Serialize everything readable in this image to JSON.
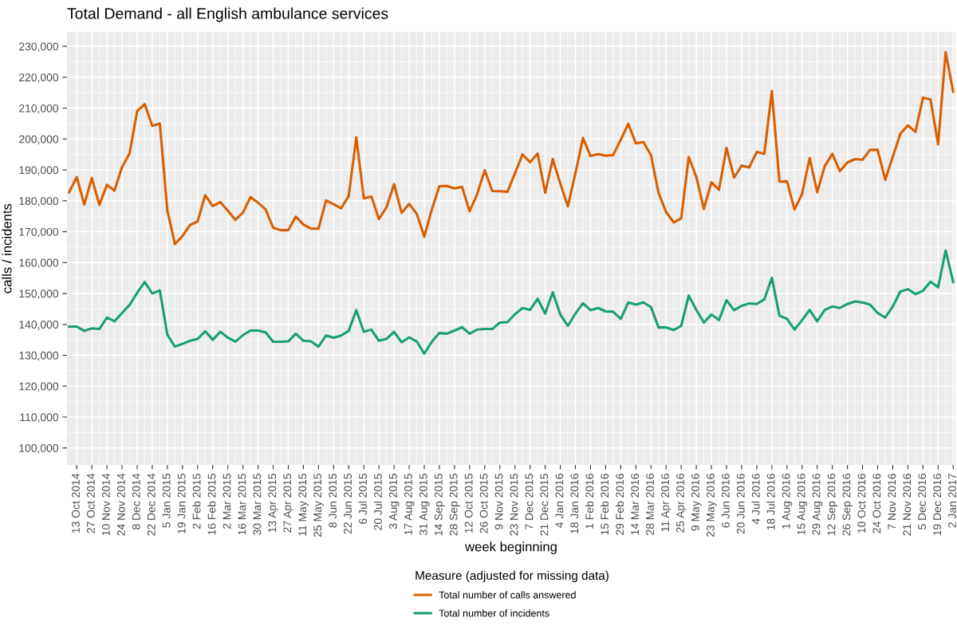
{
  "chart_data": {
    "type": "line",
    "title": "Total Demand - all English ambulance services",
    "xlabel": "week beginning",
    "ylabel": "calls / incidents",
    "legend_title": "Measure (adjusted for missing data)",
    "legend": "bottom",
    "grid": true,
    "line_style": "solid",
    "x": [
      "2014-10-06",
      "2014-10-13",
      "2014-10-20",
      "2014-10-27",
      "2014-11-03",
      "2014-11-10",
      "2014-11-17",
      "2014-11-24",
      "2014-12-01",
      "2014-12-08",
      "2014-12-15",
      "2014-12-22",
      "2014-12-29",
      "2015-01-05",
      "2015-01-12",
      "2015-01-19",
      "2015-01-26",
      "2015-02-02",
      "2015-02-09",
      "2015-02-16",
      "2015-02-23",
      "2015-03-02",
      "2015-03-09",
      "2015-03-16",
      "2015-03-23",
      "2015-03-30",
      "2015-04-06",
      "2015-04-13",
      "2015-04-20",
      "2015-04-27",
      "2015-05-04",
      "2015-05-11",
      "2015-05-18",
      "2015-05-25",
      "2015-06-01",
      "2015-06-08",
      "2015-06-15",
      "2015-06-22",
      "2015-06-29",
      "2015-07-06",
      "2015-07-13",
      "2015-07-20",
      "2015-07-27",
      "2015-08-03",
      "2015-08-10",
      "2015-08-17",
      "2015-08-24",
      "2015-08-31",
      "2015-09-07",
      "2015-09-14",
      "2015-09-21",
      "2015-09-28",
      "2015-10-05",
      "2015-10-12",
      "2015-10-19",
      "2015-10-26",
      "2015-11-02",
      "2015-11-09",
      "2015-11-16",
      "2015-11-23",
      "2015-11-30",
      "2015-12-07",
      "2015-12-14",
      "2015-12-21",
      "2015-12-28",
      "2016-01-04",
      "2016-01-11",
      "2016-01-18",
      "2016-01-25",
      "2016-02-01",
      "2016-02-08",
      "2016-02-15",
      "2016-02-22",
      "2016-02-29",
      "2016-03-07",
      "2016-03-14",
      "2016-03-21",
      "2016-03-28",
      "2016-04-04",
      "2016-04-11",
      "2016-04-18",
      "2016-04-25",
      "2016-05-02",
      "2016-05-09",
      "2016-05-16",
      "2016-05-23",
      "2016-05-30",
      "2016-06-06",
      "2016-06-13",
      "2016-06-20",
      "2016-06-27",
      "2016-07-04",
      "2016-07-11",
      "2016-07-18",
      "2016-07-25",
      "2016-08-01",
      "2016-08-08",
      "2016-08-15",
      "2016-08-22",
      "2016-08-29",
      "2016-09-05",
      "2016-09-12",
      "2016-09-19",
      "2016-09-26",
      "2016-10-03",
      "2016-10-10",
      "2016-10-17",
      "2016-10-24",
      "2016-10-31",
      "2016-11-07",
      "2016-11-14",
      "2016-11-21",
      "2016-11-28",
      "2016-12-05",
      "2016-12-12",
      "2016-12-19",
      "2016-12-26",
      "2017-01-02"
    ],
    "series": [
      {
        "name": "Total number of calls answered",
        "color": "#d95f02",
        "values": [
          182800,
          187700,
          178800,
          187400,
          178700,
          185200,
          183300,
          190900,
          195400,
          209000,
          211300,
          204300,
          205000,
          176800,
          166000,
          168600,
          172200,
          173300,
          181800,
          178300,
          179600,
          176800,
          173800,
          176200,
          181200,
          179400,
          177200,
          171300,
          170500,
          170500,
          174900,
          172300,
          171000,
          171000,
          180100,
          178900,
          177600,
          181600,
          200500,
          180800,
          181400,
          174100,
          177900,
          185400,
          176100,
          179000,
          175800,
          168400,
          177200,
          184700,
          184800,
          184000,
          184500,
          176600,
          182200,
          189900,
          183200,
          183100,
          182900,
          188900,
          195000,
          192500,
          195300,
          182600,
          193500,
          185600,
          178200,
          188900,
          200300,
          194500,
          195100,
          194600,
          194800,
          199800,
          204900,
          198600,
          199000,
          194800,
          182600,
          176400,
          173000,
          174300,
          194200,
          187700,
          177400,
          186000,
          183600,
          197100,
          187500,
          191400,
          190800,
          195800,
          195200,
          215500,
          186200,
          186300,
          177200,
          182200,
          193900,
          182800,
          191200,
          195200,
          189600,
          192400,
          193500,
          193300,
          196500,
          196500,
          186800,
          194200,
          201700,
          204400,
          202300,
          213400,
          212800,
          198300,
          228100,
          215300
        ]
      },
      {
        "name": "Total number of incidents",
        "color": "#1b9e77",
        "values": [
          139300,
          139300,
          137900,
          138700,
          138500,
          142200,
          141000,
          143700,
          146300,
          150200,
          153700,
          150000,
          151000,
          136600,
          132800,
          133700,
          134700,
          135300,
          137800,
          135000,
          137600,
          135700,
          134400,
          136500,
          138000,
          138000,
          137400,
          134400,
          134400,
          134500,
          137000,
          134700,
          134500,
          132800,
          136400,
          135700,
          136400,
          137900,
          144600,
          137600,
          138300,
          134700,
          135300,
          137600,
          134200,
          135800,
          134500,
          130500,
          134400,
          137200,
          137000,
          138000,
          139100,
          137000,
          138300,
          138500,
          138500,
          140600,
          140700,
          143300,
          145300,
          144700,
          148300,
          143500,
          150400,
          143200,
          139500,
          143500,
          146800,
          144600,
          145300,
          144200,
          144100,
          141800,
          147100,
          146400,
          147100,
          145600,
          139000,
          139000,
          138200,
          139500,
          149300,
          144700,
          140600,
          143200,
          141400,
          147800,
          144600,
          146000,
          146800,
          146600,
          148100,
          155100,
          142800,
          141800,
          138300,
          141400,
          144700,
          141000,
          144700,
          145800,
          145300,
          146600,
          147400,
          147100,
          146400,
          143700,
          142200,
          145800,
          150600,
          151400,
          149800,
          150900,
          153800,
          152000,
          163900,
          153700
        ]
      }
    ],
    "xlim": [
      "2014-10-04",
      "2017-01-04"
    ],
    "xticks": [
      {
        "value": "2014-10-13",
        "label": "13 Oct 2014"
      },
      {
        "value": "2014-10-27",
        "label": "27 Oct 2014"
      },
      {
        "value": "2014-11-10",
        "label": "10 Nov 2014"
      },
      {
        "value": "2014-11-24",
        "label": "24 Nov 2014"
      },
      {
        "value": "2014-12-08",
        "label": "8 Dec 2014"
      },
      {
        "value": "2014-12-22",
        "label": "22 Dec 2014"
      },
      {
        "value": "2015-01-05",
        "label": "5 Jan 2015"
      },
      {
        "value": "2015-01-19",
        "label": "19 Jan 2015"
      },
      {
        "value": "2015-02-02",
        "label": "2 Feb 2015"
      },
      {
        "value": "2015-02-16",
        "label": "16 Feb 2015"
      },
      {
        "value": "2015-03-02",
        "label": "2 Mar 2015"
      },
      {
        "value": "2015-03-16",
        "label": "16 Mar 2015"
      },
      {
        "value": "2015-03-30",
        "label": "30 Mar 2015"
      },
      {
        "value": "2015-04-13",
        "label": "13 Apr 2015"
      },
      {
        "value": "2015-04-27",
        "label": "27 Apr 2015"
      },
      {
        "value": "2015-05-11",
        "label": "11 May 2015"
      },
      {
        "value": "2015-05-25",
        "label": "25 May 2015"
      },
      {
        "value": "2015-06-08",
        "label": "8 Jun 2015"
      },
      {
        "value": "2015-06-22",
        "label": "22 Jun 2015"
      },
      {
        "value": "2015-07-06",
        "label": "6 Jul 2015"
      },
      {
        "value": "2015-07-20",
        "label": "20 Jul 2015"
      },
      {
        "value": "2015-08-03",
        "label": "3 Aug 2015"
      },
      {
        "value": "2015-08-17",
        "label": "17 Aug 2015"
      },
      {
        "value": "2015-08-31",
        "label": "31 Aug 2015"
      },
      {
        "value": "2015-09-14",
        "label": "14 Sep 2015"
      },
      {
        "value": "2015-09-28",
        "label": "28 Sep 2015"
      },
      {
        "value": "2015-10-12",
        "label": "12 Oct 2015"
      },
      {
        "value": "2015-10-26",
        "label": "26 Oct 2015"
      },
      {
        "value": "2015-11-09",
        "label": "9 Nov 2015"
      },
      {
        "value": "2015-11-23",
        "label": "23 Nov 2015"
      },
      {
        "value": "2015-12-07",
        "label": "7 Dec 2015"
      },
      {
        "value": "2015-12-21",
        "label": "21 Dec 2015"
      },
      {
        "value": "2016-01-04",
        "label": "4 Jan 2016"
      },
      {
        "value": "2016-01-18",
        "label": "18 Jan 2016"
      },
      {
        "value": "2016-02-01",
        "label": "1 Feb 2016"
      },
      {
        "value": "2016-02-15",
        "label": "15 Feb 2016"
      },
      {
        "value": "2016-02-29",
        "label": "29 Feb 2016"
      },
      {
        "value": "2016-03-14",
        "label": "14 Mar 2016"
      },
      {
        "value": "2016-03-28",
        "label": "28 Mar 2016"
      },
      {
        "value": "2016-04-11",
        "label": "11 Apr 2016"
      },
      {
        "value": "2016-04-25",
        "label": "25 Apr 2016"
      },
      {
        "value": "2016-05-09",
        "label": "9 May 2016"
      },
      {
        "value": "2016-05-23",
        "label": "23 May 2016"
      },
      {
        "value": "2016-06-06",
        "label": "6 Jun 2016"
      },
      {
        "value": "2016-06-20",
        "label": "20 Jun 2016"
      },
      {
        "value": "2016-07-04",
        "label": "4 Jul 2016"
      },
      {
        "value": "2016-07-18",
        "label": "18 Jul 2016"
      },
      {
        "value": "2016-08-01",
        "label": "1 Aug 2016"
      },
      {
        "value": "2016-08-15",
        "label": "15 Aug 2016"
      },
      {
        "value": "2016-08-29",
        "label": "29 Aug 2016"
      },
      {
        "value": "2016-09-12",
        "label": "12 Sep 2016"
      },
      {
        "value": "2016-09-26",
        "label": "26 Sep 2016"
      },
      {
        "value": "2016-10-10",
        "label": "10 Oct 2016"
      },
      {
        "value": "2016-10-24",
        "label": "24 Oct 2016"
      },
      {
        "value": "2016-11-07",
        "label": "7 Nov 2016"
      },
      {
        "value": "2016-11-21",
        "label": "21 Nov 2016"
      },
      {
        "value": "2016-12-05",
        "label": "5 Dec 2016"
      },
      {
        "value": "2016-12-19",
        "label": "19 Dec 2016"
      },
      {
        "value": "2017-01-02",
        "label": "2 Jan 2017"
      }
    ],
    "ylim": [
      94500,
      234600
    ],
    "yticks": [
      {
        "value": 100000,
        "label": "100,000"
      },
      {
        "value": 110000,
        "label": "110,000"
      },
      {
        "value": 120000,
        "label": "120,000"
      },
      {
        "value": 130000,
        "label": "130,000"
      },
      {
        "value": 140000,
        "label": "140,000"
      },
      {
        "value": 150000,
        "label": "150,000"
      },
      {
        "value": 160000,
        "label": "160,000"
      },
      {
        "value": 170000,
        "label": "170,000"
      },
      {
        "value": 180000,
        "label": "180,000"
      },
      {
        "value": 190000,
        "label": "190,000"
      },
      {
        "value": 200000,
        "label": "200,000"
      },
      {
        "value": 210000,
        "label": "210,000"
      },
      {
        "value": 220000,
        "label": "220,000"
      },
      {
        "value": 230000,
        "label": "230,000"
      }
    ]
  }
}
